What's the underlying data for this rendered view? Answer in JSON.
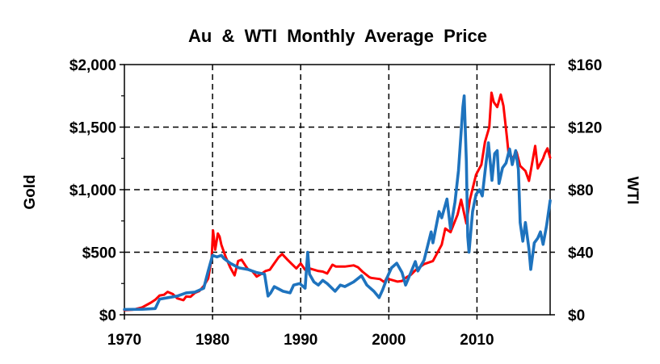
{
  "chart_data": {
    "type": "line",
    "title": "Au  &  WTI  Monthly  Average  Price",
    "ylabel_left": "Gold",
    "ylabel_right": "WTI",
    "xlim": [
      1970,
      2018.3
    ],
    "ylim_left": [
      0,
      2000
    ],
    "ylim_right": [
      0,
      160
    ],
    "x_ticks": [
      1970,
      1980,
      1990,
      2000,
      2010
    ],
    "x_tick_labels": [
      "1970",
      "1980",
      "1990",
      "2000",
      "2010"
    ],
    "left_ticks": [
      0,
      500,
      1000,
      1500,
      2000
    ],
    "left_tick_labels": [
      "$0",
      "$500",
      "$1,000",
      "$1,500",
      "$2,000"
    ],
    "right_ticks": [
      0,
      40,
      80,
      120,
      160
    ],
    "right_tick_labels": [
      "$0",
      "$40",
      "$80",
      "$120",
      "$160"
    ],
    "grid": "dashed-black",
    "series": [
      {
        "axis": "left",
        "color": "#ff0000",
        "points": [
          [
            1970.0,
            36
          ],
          [
            1971.0,
            41
          ],
          [
            1972.0,
            58
          ],
          [
            1973.0,
            97
          ],
          [
            1973.5,
            120
          ],
          [
            1974.0,
            154
          ],
          [
            1974.5,
            160
          ],
          [
            1974.9,
            183
          ],
          [
            1975.5,
            165
          ],
          [
            1976.0,
            131
          ],
          [
            1976.7,
            117
          ],
          [
            1977.0,
            146
          ],
          [
            1977.5,
            143
          ],
          [
            1978.0,
            175
          ],
          [
            1978.5,
            190
          ],
          [
            1979.0,
            230
          ],
          [
            1979.5,
            290
          ],
          [
            1979.9,
            450
          ],
          [
            1980.05,
            675
          ],
          [
            1980.3,
            520
          ],
          [
            1980.6,
            650
          ],
          [
            1980.8,
            625
          ],
          [
            1981.0,
            560
          ],
          [
            1981.5,
            460
          ],
          [
            1982.0,
            380
          ],
          [
            1982.5,
            315
          ],
          [
            1982.9,
            430
          ],
          [
            1983.3,
            440
          ],
          [
            1983.8,
            385
          ],
          [
            1984.0,
            365
          ],
          [
            1984.5,
            350
          ],
          [
            1985.0,
            305
          ],
          [
            1985.5,
            325
          ],
          [
            1986.0,
            350
          ],
          [
            1986.5,
            360
          ],
          [
            1987.0,
            410
          ],
          [
            1987.5,
            460
          ],
          [
            1987.9,
            485
          ],
          [
            1988.5,
            440
          ],
          [
            1989.0,
            405
          ],
          [
            1989.5,
            370
          ],
          [
            1990.0,
            410
          ],
          [
            1990.5,
            360
          ],
          [
            1991.0,
            370
          ],
          [
            1991.5,
            360
          ],
          [
            1992.0,
            350
          ],
          [
            1992.5,
            345
          ],
          [
            1993.0,
            330
          ],
          [
            1993.6,
            400
          ],
          [
            1994.0,
            385
          ],
          [
            1995.0,
            385
          ],
          [
            1996.0,
            395
          ],
          [
            1996.5,
            380
          ],
          [
            1997.0,
            345
          ],
          [
            1997.8,
            300
          ],
          [
            1998.0,
            295
          ],
          [
            1999.0,
            285
          ],
          [
            1999.5,
            260
          ],
          [
            1999.8,
            300
          ],
          [
            2000.0,
            285
          ],
          [
            2001.0,
            265
          ],
          [
            2001.5,
            270
          ],
          [
            2002.0,
            300
          ],
          [
            2002.5,
            320
          ],
          [
            2003.0,
            355
          ],
          [
            2004.0,
            405
          ],
          [
            2005.0,
            430
          ],
          [
            2006.0,
            560
          ],
          [
            2006.4,
            690
          ],
          [
            2007.0,
            660
          ],
          [
            2007.8,
            800
          ],
          [
            2008.2,
            920
          ],
          [
            2008.8,
            730
          ],
          [
            2009.2,
            920
          ],
          [
            2009.9,
            1120
          ],
          [
            2010.5,
            1200
          ],
          [
            2010.9,
            1380
          ],
          [
            2011.4,
            1500
          ],
          [
            2011.65,
            1775
          ],
          [
            2011.9,
            1700
          ],
          [
            2012.3,
            1660
          ],
          [
            2012.7,
            1760
          ],
          [
            2013.0,
            1670
          ],
          [
            2013.4,
            1420
          ],
          [
            2013.6,
            1280
          ],
          [
            2014.0,
            1250
          ],
          [
            2014.5,
            1300
          ],
          [
            2014.9,
            1190
          ],
          [
            2015.5,
            1150
          ],
          [
            2015.9,
            1070
          ],
          [
            2016.1,
            1150
          ],
          [
            2016.6,
            1350
          ],
          [
            2016.9,
            1170
          ],
          [
            2017.5,
            1250
          ],
          [
            2017.7,
            1290
          ],
          [
            2018.0,
            1330
          ],
          [
            2018.3,
            1255
          ]
        ]
      },
      {
        "axis": "right",
        "color": "#1e73be",
        "points": [
          [
            1970.0,
            3.4
          ],
          [
            1972.0,
            3.5
          ],
          [
            1973.5,
            4
          ],
          [
            1974.0,
            10
          ],
          [
            1975.0,
            11
          ],
          [
            1976.0,
            12
          ],
          [
            1977.0,
            14
          ],
          [
            1978.0,
            14.5
          ],
          [
            1979.0,
            17
          ],
          [
            1979.5,
            28
          ],
          [
            1980.0,
            38
          ],
          [
            1980.5,
            37
          ],
          [
            1981.0,
            38
          ],
          [
            1981.3,
            36
          ],
          [
            1982.0,
            33
          ],
          [
            1983.0,
            30
          ],
          [
            1984.0,
            29
          ],
          [
            1985.0,
            27
          ],
          [
            1985.9,
            26
          ],
          [
            1986.3,
            12
          ],
          [
            1986.6,
            14
          ],
          [
            1987.0,
            18
          ],
          [
            1988.0,
            15
          ],
          [
            1988.8,
            14
          ],
          [
            1989.2,
            19
          ],
          [
            1989.9,
            20
          ],
          [
            1990.5,
            17
          ],
          [
            1990.8,
            40
          ],
          [
            1991.0,
            26
          ],
          [
            1991.5,
            21
          ],
          [
            1992.0,
            19
          ],
          [
            1992.5,
            22
          ],
          [
            1993.0,
            20
          ],
          [
            1993.9,
            15
          ],
          [
            1994.5,
            19
          ],
          [
            1995.0,
            18
          ],
          [
            1996.0,
            21
          ],
          [
            1996.9,
            25
          ],
          [
            1997.5,
            19
          ],
          [
            1998.3,
            15
          ],
          [
            1998.9,
            11
          ],
          [
            1999.3,
            16
          ],
          [
            1999.9,
            25
          ],
          [
            2000.3,
            30
          ],
          [
            2000.9,
            33
          ],
          [
            2001.5,
            27
          ],
          [
            2001.9,
            19
          ],
          [
            2002.5,
            27
          ],
          [
            2003.0,
            34
          ],
          [
            2003.3,
            28
          ],
          [
            2004.0,
            35
          ],
          [
            2004.8,
            53
          ],
          [
            2005.0,
            46
          ],
          [
            2005.7,
            66
          ],
          [
            2006.0,
            62
          ],
          [
            2006.6,
            74
          ],
          [
            2007.0,
            55
          ],
          [
            2007.5,
            72
          ],
          [
            2007.9,
            92
          ],
          [
            2008.4,
            133
          ],
          [
            2008.55,
            140
          ],
          [
            2008.8,
            98
          ],
          [
            2008.95,
            50
          ],
          [
            2009.1,
            40
          ],
          [
            2009.5,
            66
          ],
          [
            2009.9,
            77
          ],
          [
            2010.3,
            80
          ],
          [
            2010.6,
            76
          ],
          [
            2010.9,
            91
          ],
          [
            2011.3,
            110
          ],
          [
            2011.7,
            86
          ],
          [
            2012.0,
            103
          ],
          [
            2012.3,
            105
          ],
          [
            2012.5,
            84
          ],
          [
            2012.9,
            94
          ],
          [
            2013.3,
            97
          ],
          [
            2013.7,
            106
          ],
          [
            2014.0,
            96
          ],
          [
            2014.4,
            105
          ],
          [
            2014.7,
            93
          ],
          [
            2014.9,
            59
          ],
          [
            2015.2,
            47
          ],
          [
            2015.5,
            59
          ],
          [
            2015.9,
            42
          ],
          [
            2016.1,
            29
          ],
          [
            2016.5,
            46
          ],
          [
            2016.9,
            49
          ],
          [
            2017.2,
            53
          ],
          [
            2017.5,
            45
          ],
          [
            2017.9,
            57
          ],
          [
            2018.3,
            73
          ]
        ]
      }
    ]
  }
}
